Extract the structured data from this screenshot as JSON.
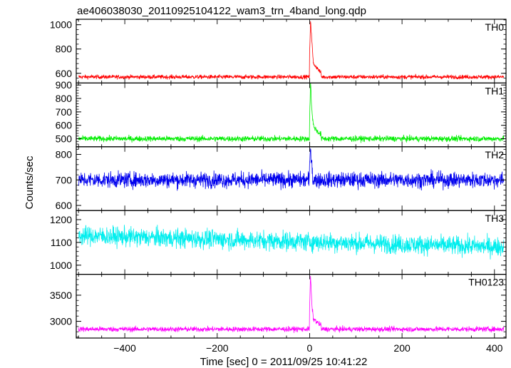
{
  "chart_data": {
    "type": "line",
    "title": "ae406038030_20110925104122_wam3_trn_4band_long.qdp",
    "xlabel": "Time [sec] 0 = 2011/09/25 10:41:22",
    "ylabel": "Counts/sec",
    "xlim": [
      -505,
      425
    ],
    "x_ticks": [
      -400,
      -200,
      0,
      200,
      400
    ],
    "x_tick_labels": [
      "−400",
      "−200",
      "0",
      "200",
      "400"
    ],
    "grid": false,
    "panels": [
      {
        "name": "TH0",
        "color": "#ff0000",
        "ylim": [
          520,
          1045
        ],
        "y_ticks": [
          600,
          800,
          1000
        ],
        "y_tick_labels": [
          "600",
          "800",
          "1000"
        ],
        "baseline": 570,
        "noise": 12,
        "peak_x": [
          0,
          2,
          5,
          8,
          15,
          25
        ],
        "peak_y": [
          760,
          1035,
          860,
          680,
          650,
          600
        ]
      },
      {
        "name": "TH1",
        "color": "#00ee00",
        "ylim": [
          440,
          915
        ],
        "y_ticks": [
          500,
          600,
          700,
          800,
          900
        ],
        "y_tick_labels": [
          "500",
          "600",
          "700",
          "800",
          "900"
        ],
        "baseline": 500,
        "noise": 15,
        "peak_x": [
          0,
          2,
          5,
          8,
          15,
          25
        ],
        "peak_y": [
          650,
          920,
          700,
          600,
          560,
          530
        ]
      },
      {
        "name": "TH2",
        "color": "#0000ee",
        "ylim": [
          580,
          830
        ],
        "y_ticks": [
          600,
          700,
          800
        ],
        "y_tick_labels": [
          "600",
          "700",
          "800"
        ],
        "baseline": 700,
        "noise": 22,
        "peak_x": [
          0,
          2,
          6
        ],
        "peak_y": [
          760,
          825,
          740
        ]
      },
      {
        "name": "TH3",
        "color": "#00eeee",
        "ylim": [
          960,
          1240
        ],
        "y_ticks": [
          1000,
          1100,
          1200
        ],
        "y_tick_labels": [
          "1000",
          "1100",
          "1200"
        ],
        "baseline_start": 1130,
        "baseline_end": 1080,
        "noise": 30,
        "peak_x": [],
        "peak_y": []
      },
      {
        "name": "TH0123",
        "color": "#ff00ff",
        "ylim": [
          2680,
          3900
        ],
        "y_ticks": [
          3000,
          3500
        ],
        "y_tick_labels": [
          "3000",
          "3500"
        ],
        "baseline": 2850,
        "noise": 35,
        "peak_x": [
          0,
          2,
          5,
          8,
          15,
          25
        ],
        "peak_y": [
          3300,
          3860,
          3300,
          3050,
          2990,
          2920
        ]
      }
    ]
  }
}
